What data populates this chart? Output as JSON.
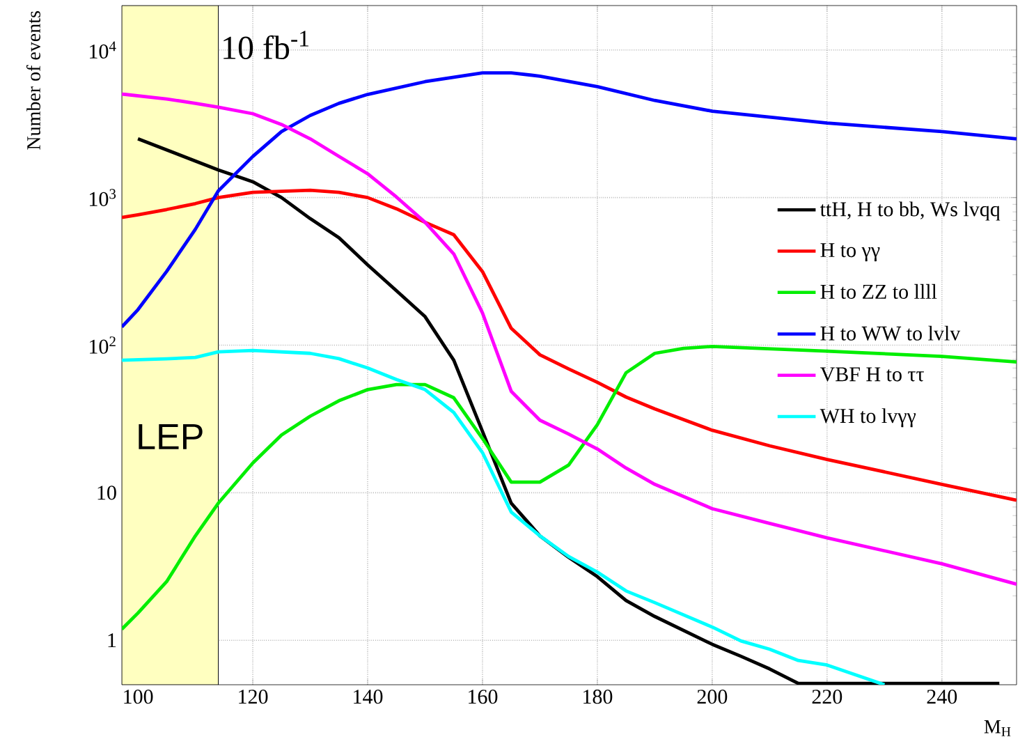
{
  "chart_data": {
    "type": "line",
    "xlabel": "M$_{H}$",
    "ylabel": "Number of events",
    "xlim": [
      97.2,
      253
    ],
    "ylim": [
      0.5,
      20000
    ],
    "log": "y",
    "grid": true,
    "legend": "right",
    "marker": "none",
    "line_style": "solid",
    "xticks": [
      100,
      120,
      140,
      160,
      180,
      200,
      220,
      240
    ],
    "yticks": [
      {
        "value": 1,
        "label": "1"
      },
      {
        "value": 10,
        "label": "10"
      },
      {
        "value": 100,
        "label": "10$^{2}$"
      },
      {
        "value": 1000,
        "label": "10$^{3}$"
      },
      {
        "value": 10000,
        "label": "10$^{4}$"
      }
    ],
    "bands": [
      {
        "axis": "x",
        "from": 97.2,
        "to": 114,
        "label": "LEP",
        "color": "#ffffc0"
      }
    ],
    "annotations": [
      "10 fb$^{-1}$"
    ],
    "series": [
      {
        "name": "ttH, H to bb, Ws lvqq",
        "color": "#000000",
        "x": [
          100,
          114,
          120,
          125,
          130,
          135,
          140,
          145,
          150,
          155,
          160,
          165,
          170,
          175,
          180,
          185,
          190,
          200,
          205,
          210,
          215,
          250
        ],
        "values": [
          2500,
          1540,
          1280,
          1000,
          720,
          535,
          350,
          234,
          156,
          79,
          26,
          8.5,
          5.1,
          3.65,
          2.7,
          1.86,
          1.45,
          0.94,
          0.78,
          0.64,
          0.51,
          0.51
        ]
      },
      {
        "name": "H to γγ",
        "color": "#ff0000",
        "x": [
          97.2,
          100,
          105,
          110,
          114,
          120,
          130,
          135,
          140,
          145,
          150,
          155,
          160,
          165,
          170,
          175,
          180,
          185,
          190,
          200,
          210,
          220,
          240,
          253
        ],
        "values": [
          733,
          765,
          830,
          910,
          1000,
          1085,
          1120,
          1085,
          1000,
          840,
          680,
          560,
          315,
          130,
          86,
          69,
          56,
          44.5,
          37,
          26.5,
          20.8,
          16.8,
          11.4,
          8.9
        ]
      },
      {
        "name": "H to ZZ to llll",
        "color": "#00ee00",
        "x": [
          97.2,
          100,
          105,
          110,
          114,
          120,
          125,
          130,
          135,
          140,
          145,
          150,
          155,
          160,
          165,
          170,
          175,
          180,
          185,
          190,
          195,
          200,
          220,
          240,
          253
        ],
        "values": [
          1.19,
          1.53,
          2.5,
          5.1,
          8.5,
          15.9,
          24.6,
          33,
          42,
          50,
          54,
          54,
          44,
          23.3,
          11.8,
          11.8,
          15.4,
          28.9,
          65,
          88,
          95,
          98,
          91,
          84,
          77
        ]
      },
      {
        "name": "H to WW to lvlv",
        "color": "#0000ff",
        "x": [
          97.2,
          100,
          105,
          110,
          114,
          120,
          125,
          130,
          135,
          140,
          150,
          160,
          165,
          170,
          180,
          190,
          200,
          220,
          240,
          253
        ],
        "values": [
          133,
          174,
          316,
          610,
          1110,
          1900,
          2800,
          3600,
          4350,
          5000,
          6100,
          7000,
          7000,
          6650,
          5650,
          4550,
          3850,
          3200,
          2800,
          2500
        ]
      },
      {
        "name": "VBF H to ττ",
        "color": "#ff00ff",
        "x": [
          97.2,
          105,
          110,
          114,
          120,
          125,
          130,
          135,
          140,
          145,
          150,
          155,
          160,
          165,
          170,
          175,
          180,
          185,
          190,
          200,
          210,
          220,
          240,
          253
        ],
        "values": [
          5030,
          4660,
          4350,
          4100,
          3700,
          3130,
          2500,
          1900,
          1450,
          1010,
          680,
          415,
          165,
          48.7,
          31,
          25,
          19.8,
          14.7,
          11.4,
          7.8,
          6.2,
          4.95,
          3.3,
          2.4
        ]
      },
      {
        "name": "WH to lvγγ",
        "color": "#00ffff",
        "x": [
          97.2,
          105,
          110,
          114,
          120,
          130,
          135,
          140,
          145,
          150,
          155,
          160,
          165,
          170,
          175,
          180,
          185,
          190,
          200,
          205,
          210,
          215,
          220,
          230
        ],
        "values": [
          79,
          80.8,
          82.6,
          90,
          92,
          88,
          81,
          70,
          58.5,
          50,
          35,
          18.7,
          7.4,
          5.1,
          3.7,
          2.9,
          2.16,
          1.8,
          1.23,
          0.99,
          0.87,
          0.73,
          0.68,
          0.5
        ]
      }
    ]
  }
}
